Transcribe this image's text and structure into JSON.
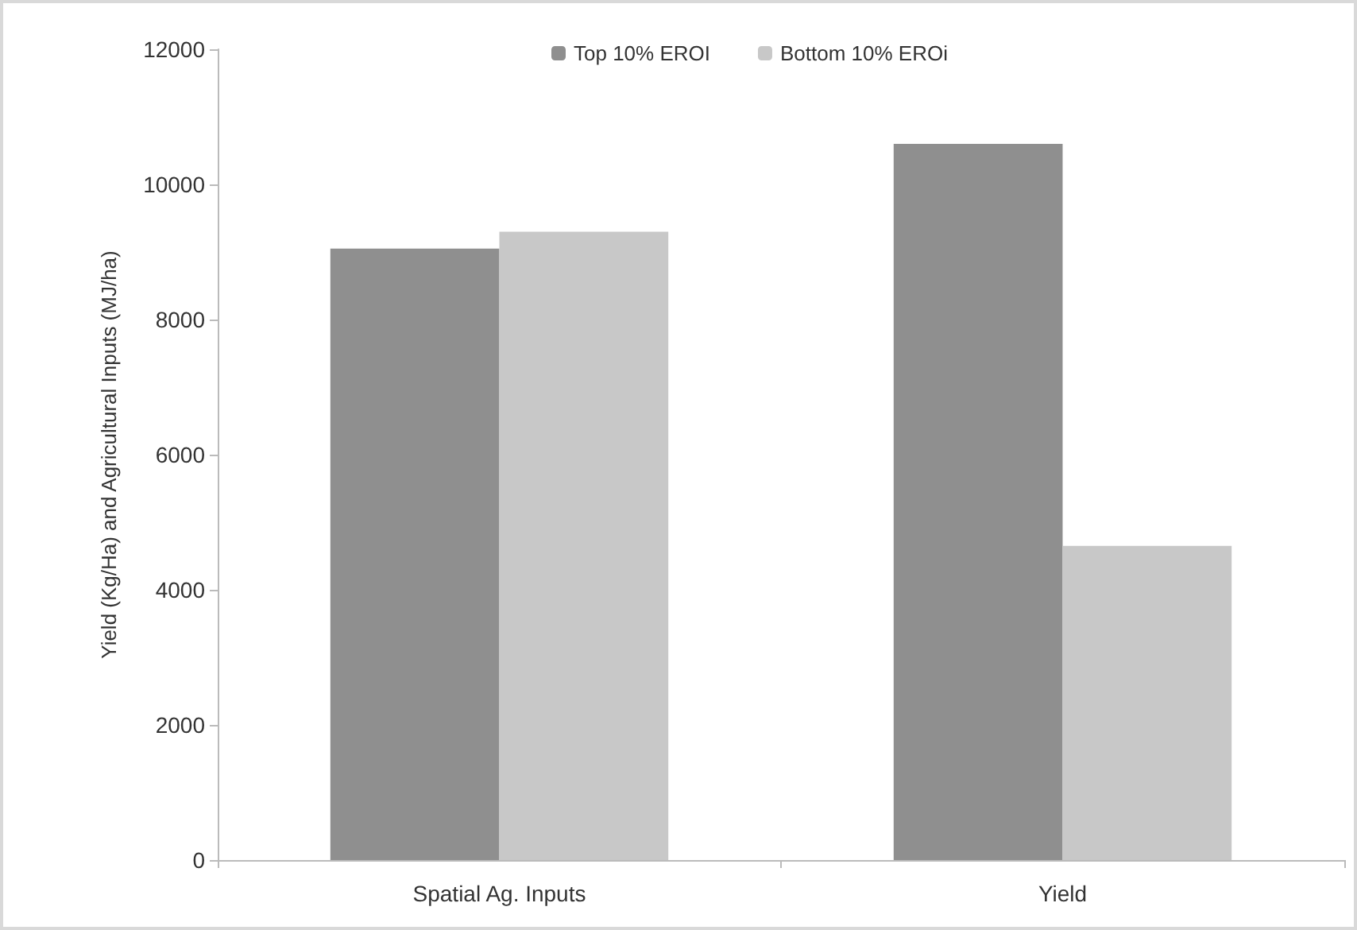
{
  "chart_data": {
    "type": "bar",
    "ylabel": "Yield (Kg/Ha) and Agricultural Inputs (MJ/ha)",
    "categories": [
      "Spatial Ag. Inputs",
      "Yield"
    ],
    "series": [
      {
        "name": "Top 10% EROI",
        "color": "#8f8f8f",
        "values": [
          9050,
          10600
        ]
      },
      {
        "name": "Bottom 10% EROi",
        "color": "#c8c8c8",
        "values": [
          9300,
          4650
        ]
      }
    ],
    "ylim": [
      0,
      12000
    ],
    "yticks": [
      0,
      2000,
      4000,
      6000,
      8000,
      10000,
      12000
    ],
    "grid": false,
    "legend": "top"
  }
}
